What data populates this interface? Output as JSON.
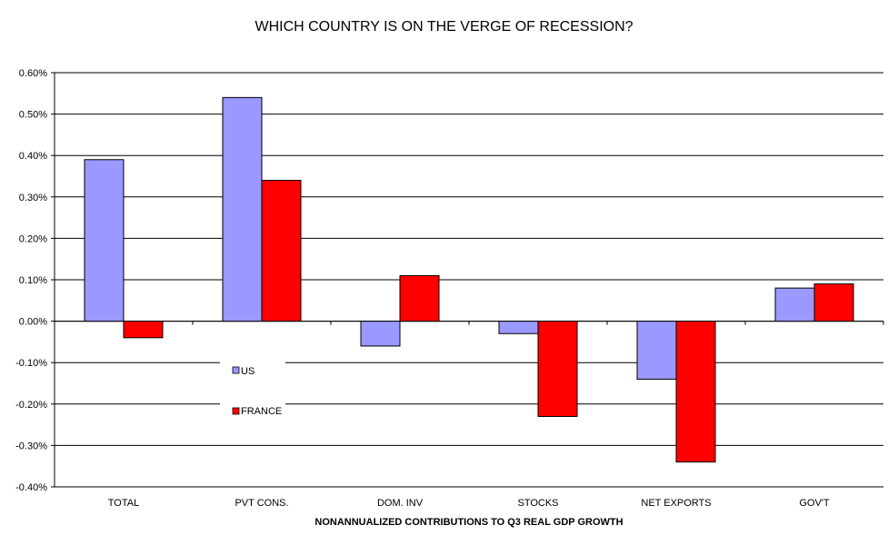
{
  "chart_data": {
    "type": "bar",
    "title": "WHICH COUNTRY IS ON THE VERGE OF RECESSION?",
    "xlabel": "NONANNUALIZED CONTRIBUTIONS TO Q3 REAL GDP GROWTH",
    "ylabel": "",
    "categories": [
      "TOTAL",
      "PVT CONS.",
      "DOM. INV",
      "STOCKS",
      "NET EXPORTS",
      "GOV'T"
    ],
    "series": [
      {
        "name": "US",
        "color": "#9999ff",
        "values": [
          0.39,
          0.54,
          -0.06,
          -0.03,
          -0.14,
          0.08
        ]
      },
      {
        "name": "FRANCE",
        "color": "#ff0000",
        "values": [
          -0.04,
          0.34,
          0.11,
          -0.23,
          -0.34,
          0.09
        ]
      }
    ],
    "ylim": [
      -0.4,
      0.6
    ],
    "ytick_step": 0.1,
    "ytick_labels": [
      "-0.40%",
      "-0.30%",
      "-0.20%",
      "-0.10%",
      "0.00%",
      "0.10%",
      "0.20%",
      "0.30%",
      "0.40%",
      "0.50%",
      "0.60%"
    ],
    "grid": true,
    "legend_position": "lower-left"
  }
}
